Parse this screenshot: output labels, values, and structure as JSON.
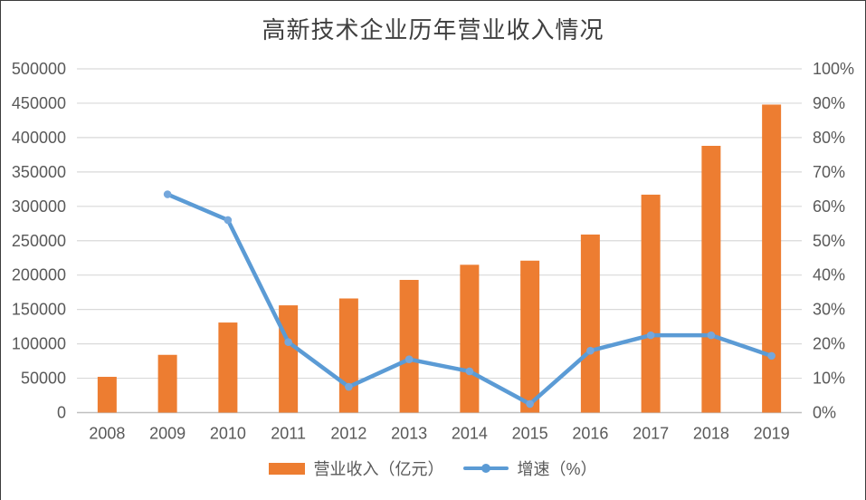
{
  "chart_data": {
    "type": "combo",
    "title": "高新技术企业历年营业收入情况",
    "categories": [
      "2008",
      "2009",
      "2010",
      "2011",
      "2012",
      "2013",
      "2014",
      "2015",
      "2016",
      "2017",
      "2018",
      "2019"
    ],
    "series": [
      {
        "name": "营业收入（亿元）",
        "type": "bar",
        "axis": "left",
        "color": "#ED7D31",
        "values": [
          52000,
          84000,
          131000,
          156000,
          166000,
          193000,
          215000,
          221000,
          259000,
          317000,
          388000,
          448000
        ]
      },
      {
        "name": "增速（%）",
        "type": "line",
        "axis": "right",
        "color": "#5B9BD5",
        "marker_color": "#74A7DC",
        "values": [
          null,
          63.5,
          56,
          20.5,
          7.5,
          15.5,
          12,
          2.5,
          18,
          22.5,
          22.5,
          16.5
        ]
      }
    ],
    "left_axis": {
      "min": 0,
      "max": 500000,
      "step": 50000,
      "tick_labels": [
        "0",
        "50000",
        "100000",
        "150000",
        "200000",
        "250000",
        "300000",
        "350000",
        "400000",
        "450000",
        "500000"
      ]
    },
    "right_axis": {
      "min": 0,
      "max": 100,
      "step": 10,
      "tick_labels": [
        "0%",
        "10%",
        "20%",
        "30%",
        "40%",
        "50%",
        "60%",
        "70%",
        "80%",
        "90%",
        "100%"
      ]
    },
    "grid": "horizontal",
    "legend_position": "bottom-center"
  },
  "colors": {
    "gridline": "#D9D9D9",
    "axis_line": "#BFBFBF",
    "tick_text": "#595959",
    "title_text": "#3F3F3F"
  }
}
